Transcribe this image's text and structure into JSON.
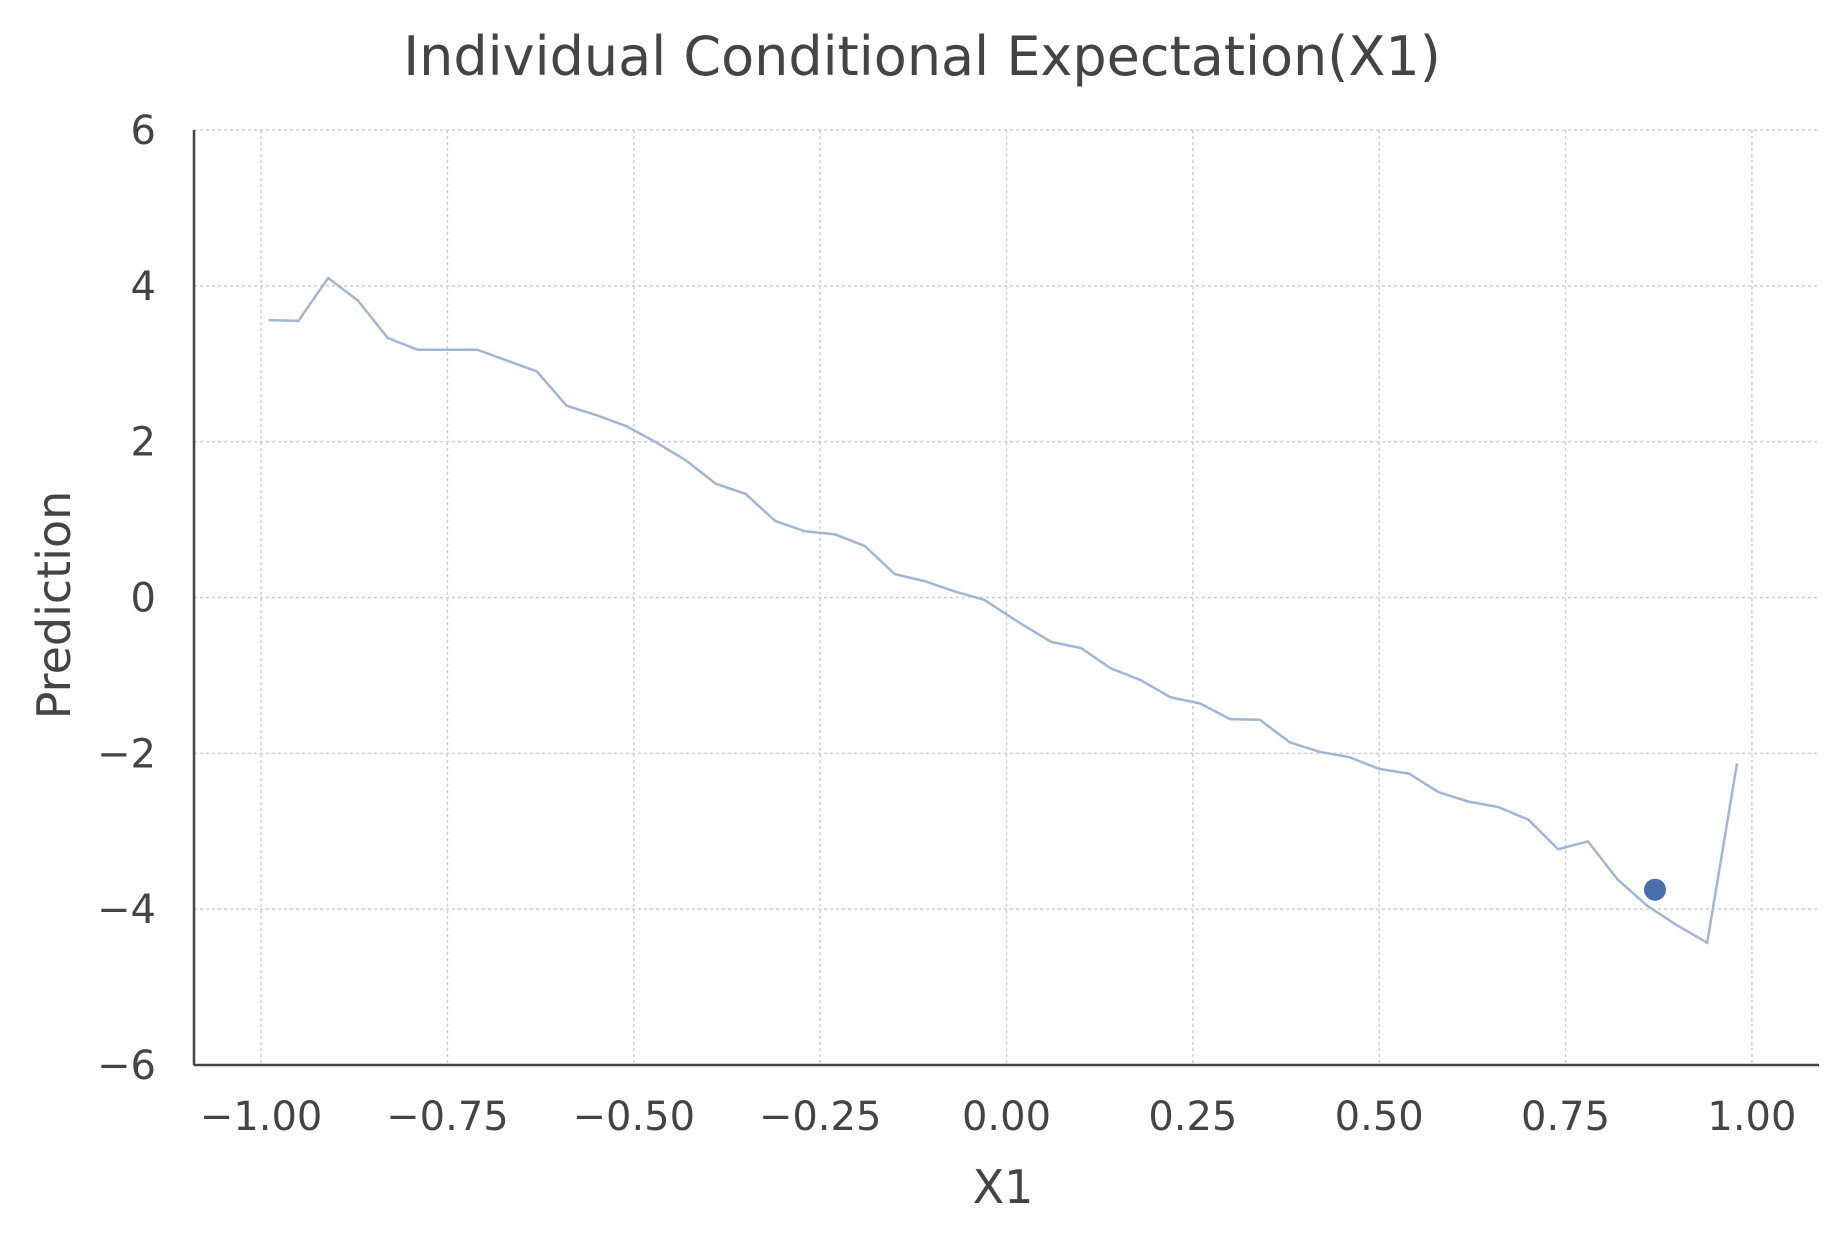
{
  "chart_data": {
    "type": "line",
    "title": "Individual Conditional Expectation(X1)",
    "xlabel": "X1",
    "ylabel": "Prediction",
    "xlim": [
      -1.09,
      1.09
    ],
    "ylim": [
      -6,
      6
    ],
    "xticks": [
      -1.0,
      -0.75,
      -0.5,
      -0.25,
      0.0,
      0.25,
      0.5,
      0.75,
      1.0
    ],
    "xtick_labels": [
      "−1.00",
      "−0.75",
      "−0.50",
      "−0.25",
      "0.00",
      "0.25",
      "0.50",
      "0.75",
      "1.00"
    ],
    "yticks": [
      -6,
      -4,
      -2,
      0,
      2,
      4,
      6
    ],
    "ytick_labels": [
      "−6",
      "−4",
      "−2",
      "0",
      "2",
      "4",
      "6"
    ],
    "grid": true,
    "colors": {
      "line": "#a2b6d4",
      "point": "#4a6fad",
      "axis": "#444444",
      "grid": "#cfcfcf"
    },
    "series": [
      {
        "x": [
          -0.99,
          -0.95,
          -0.91,
          -0.87,
          -0.83,
          -0.79,
          -0.75,
          -0.71,
          -0.67,
          -0.63,
          -0.59,
          -0.55,
          -0.51,
          -0.47,
          -0.43,
          -0.39,
          -0.35,
          -0.31,
          -0.27,
          -0.23,
          -0.19,
          -0.15,
          -0.11,
          -0.07,
          -0.03,
          0.02,
          0.06,
          0.1,
          0.14,
          0.18,
          0.22,
          0.26,
          0.3,
          0.34,
          0.38,
          0.42,
          0.46,
          0.5,
          0.54,
          0.58,
          0.62,
          0.66,
          0.7,
          0.74,
          0.78,
          0.82,
          0.86,
          0.9,
          0.94,
          0.98
        ],
        "y": [
          3.56,
          3.55,
          4.1,
          3.81,
          3.33,
          3.18,
          3.18,
          3.18,
          3.04,
          2.9,
          2.46,
          2.34,
          2.2,
          1.99,
          1.76,
          1.46,
          1.33,
          0.98,
          0.85,
          0.81,
          0.66,
          0.3,
          0.21,
          0.08,
          -0.03,
          -0.34,
          -0.57,
          -0.65,
          -0.91,
          -1.06,
          -1.28,
          -1.36,
          -1.56,
          -1.57,
          -1.86,
          -1.98,
          -2.05,
          -2.2,
          -2.26,
          -2.5,
          -2.62,
          -2.69,
          -2.85,
          -3.23,
          -3.13,
          -3.62,
          -3.96,
          -4.21,
          -4.43,
          -2.13
        ]
      }
    ],
    "point": {
      "x": 0.87,
      "y": -3.75
    }
  }
}
